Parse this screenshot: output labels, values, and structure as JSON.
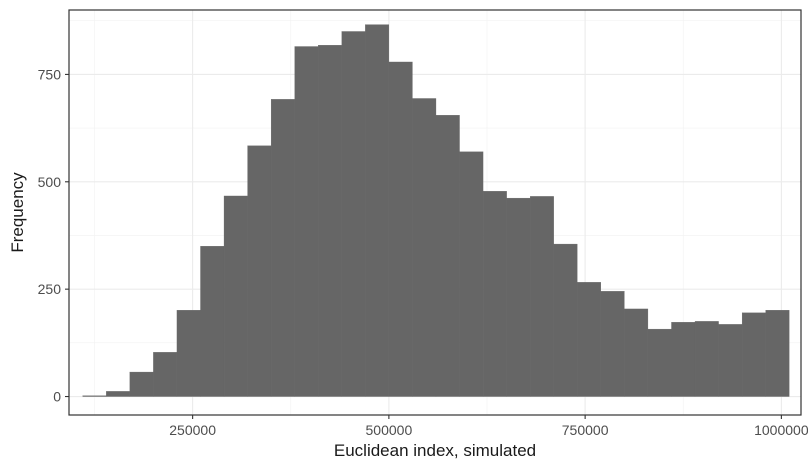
{
  "chart_data": {
    "type": "bar",
    "title": "",
    "xlabel": "Euclidean index, simulated",
    "ylabel": "Frequency",
    "xlim": [
      92500,
      1025000
    ],
    "ylim": [
      -43,
      900
    ],
    "x_ticks": [
      250000,
      500000,
      750000,
      1000000
    ],
    "x_tick_labels": [
      "250000",
      "500000",
      "750000",
      "1000000"
    ],
    "y_ticks": [
      0,
      250,
      500,
      750
    ],
    "y_tick_labels": [
      "0",
      "250",
      "500",
      "750"
    ],
    "grid": true,
    "bin_width": 30000,
    "bin_starts": [
      110000,
      140000,
      170000,
      200000,
      230000,
      260000,
      290000,
      320000,
      350000,
      380000,
      410000,
      440000,
      470000,
      500000,
      530000,
      560000,
      590000,
      620000,
      650000,
      680000,
      710000,
      740000,
      770000,
      800000,
      830000,
      860000,
      890000,
      920000,
      950000,
      980000
    ],
    "values": [
      2,
      12,
      57,
      103,
      201,
      350,
      467,
      584,
      692,
      815,
      818,
      850,
      866,
      779,
      694,
      655,
      570,
      478,
      462,
      466,
      355,
      266,
      245,
      204,
      157,
      173,
      175,
      168,
      195,
      201
    ],
    "colors": {
      "bar": "#666666",
      "panel_border": "#333333",
      "grid_major": "#ebebeb",
      "grid_minor": "#f2f2f2"
    }
  }
}
